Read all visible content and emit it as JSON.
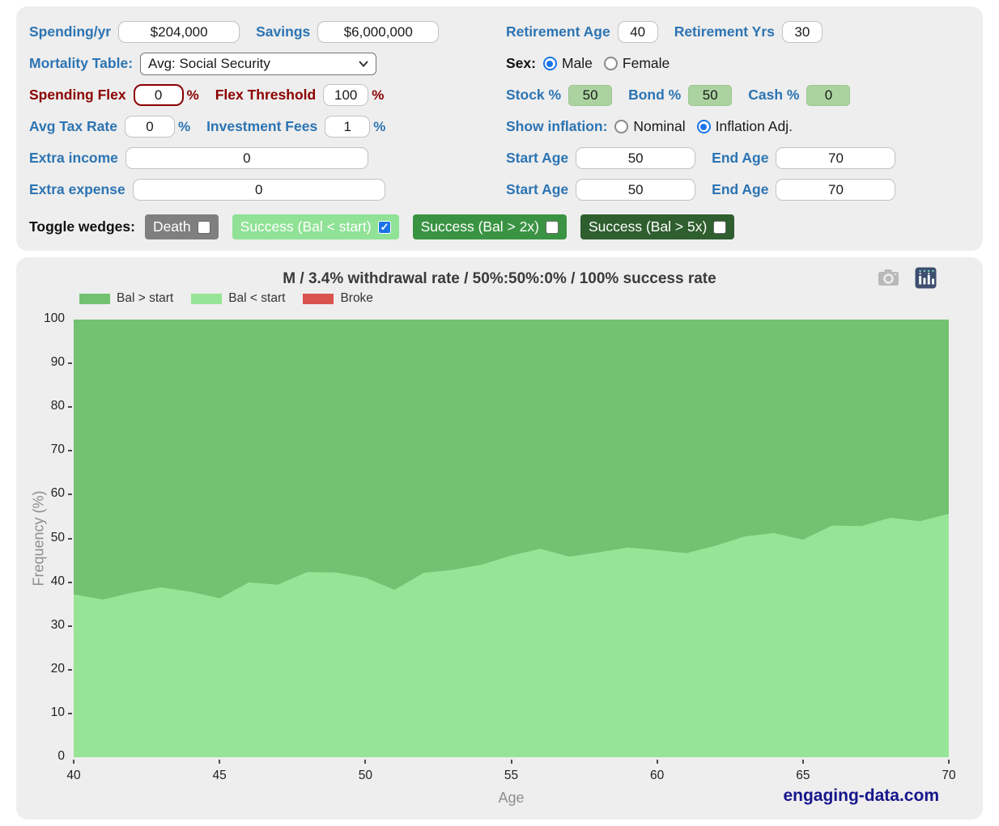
{
  "form": {
    "spending_label": "Spending/yr",
    "spending_value": "$204,000",
    "savings_label": "Savings",
    "savings_value": "$6,000,000",
    "retirement_age_label": "Retirement Age",
    "retirement_age_value": "40",
    "retirement_yrs_label": "Retirement Yrs",
    "retirement_yrs_value": "30",
    "mortality_label": "Mortality Table:",
    "mortality_value": "Avg: Social Security",
    "sex_label": "Sex:",
    "male_label": "Male",
    "female_label": "Female",
    "sex_male_checked": true,
    "sex_female_checked": false,
    "spending_flex_label": "Spending Flex",
    "spending_flex_value": "0",
    "flex_threshold_label": "Flex Threshold",
    "flex_threshold_value": "100",
    "percent": "%",
    "stock_label": "Stock %",
    "stock_value": "50",
    "bond_label": "Bond %",
    "bond_value": "50",
    "cash_label": "Cash %",
    "cash_value": "0",
    "avg_tax_label": "Avg Tax Rate",
    "avg_tax_value": "0",
    "fees_label": "Investment Fees",
    "fees_value": "1",
    "inflation_label": "Show inflation:",
    "nominal_label": "Nominal",
    "inflation_adj_label": "Inflation Adj.",
    "nominal_checked": false,
    "inflation_adj_checked": true,
    "extra_income_label": "Extra income",
    "extra_income_value": "0",
    "income_start_age_label": "Start Age",
    "income_start_age_value": "50",
    "income_end_age_label": "End Age",
    "income_end_age_value": "70",
    "extra_expense_label": "Extra expense",
    "extra_expense_value": "0",
    "expense_start_age_label": "Start Age",
    "expense_start_age_value": "50",
    "expense_end_age_label": "End Age",
    "expense_end_age_value": "70",
    "toggle_label": "Toggle wedges:",
    "toggles": [
      {
        "label": "Death",
        "color": "#7f7f7f",
        "checked": false
      },
      {
        "label": "Success (Bal < start)",
        "color": "#90e296",
        "checked": true
      },
      {
        "label": "Success (Bal > 2x)",
        "color": "#3a9342",
        "checked": false
      },
      {
        "label": "Success (Bal > 5x)",
        "color": "#2f5e2f",
        "checked": false
      }
    ]
  },
  "chart_data": {
    "type": "area",
    "stacked": true,
    "title": "M / 3.4% withdrawal rate / 50%:50%:0% / 100% success rate",
    "xlabel": "Age",
    "ylabel": "Frequency (%)",
    "xlim": [
      40,
      70
    ],
    "ylim": [
      0,
      100
    ],
    "xticks": [
      40,
      45,
      50,
      55,
      60,
      65,
      70
    ],
    "yticks": [
      0,
      10,
      20,
      30,
      40,
      50,
      60,
      70,
      80,
      90,
      100
    ],
    "grid": false,
    "legend_position": "top-left",
    "x": [
      40,
      41,
      42,
      43,
      44,
      45,
      46,
      47,
      48,
      49,
      50,
      51,
      52,
      53,
      54,
      55,
      56,
      57,
      58,
      59,
      60,
      61,
      62,
      63,
      64,
      65,
      66,
      67,
      68,
      69,
      70
    ],
    "series": [
      {
        "name": "Bal < start",
        "color": "#96e596",
        "values": [
          37.2,
          36.0,
          37.6,
          38.8,
          37.8,
          36.3,
          39.9,
          39.4,
          42.3,
          42.2,
          41.0,
          38.2,
          42.1,
          42.8,
          44.0,
          46.1,
          47.6,
          45.8,
          46.8,
          47.9,
          47.3,
          46.6,
          48.3,
          50.4,
          51.2,
          49.7,
          52.9,
          52.8,
          54.7,
          53.9,
          55.6
        ]
      },
      {
        "name": "Bal > start",
        "color": "#72c272",
        "values": [
          62.8,
          64.0,
          62.4,
          61.2,
          62.2,
          63.7,
          60.1,
          60.6,
          57.7,
          57.8,
          59.0,
          61.8,
          57.9,
          57.2,
          56.0,
          53.9,
          52.4,
          54.2,
          53.2,
          52.1,
          52.7,
          53.4,
          51.7,
          49.6,
          48.8,
          50.3,
          47.1,
          47.2,
          45.3,
          46.1,
          44.4
        ]
      },
      {
        "name": "Broke",
        "color": "#d9534f",
        "values": [
          0,
          0,
          0,
          0,
          0,
          0,
          0,
          0,
          0,
          0,
          0,
          0,
          0,
          0,
          0,
          0,
          0,
          0,
          0,
          0,
          0,
          0,
          0,
          0,
          0,
          0,
          0,
          0,
          0,
          0,
          0
        ]
      }
    ],
    "legend": [
      {
        "label": "Bal > start",
        "color": "#72c272"
      },
      {
        "label": "Bal < start",
        "color": "#96e596"
      },
      {
        "label": "Broke",
        "color": "#d9534f"
      }
    ],
    "watermark": "engaging-data.com"
  }
}
